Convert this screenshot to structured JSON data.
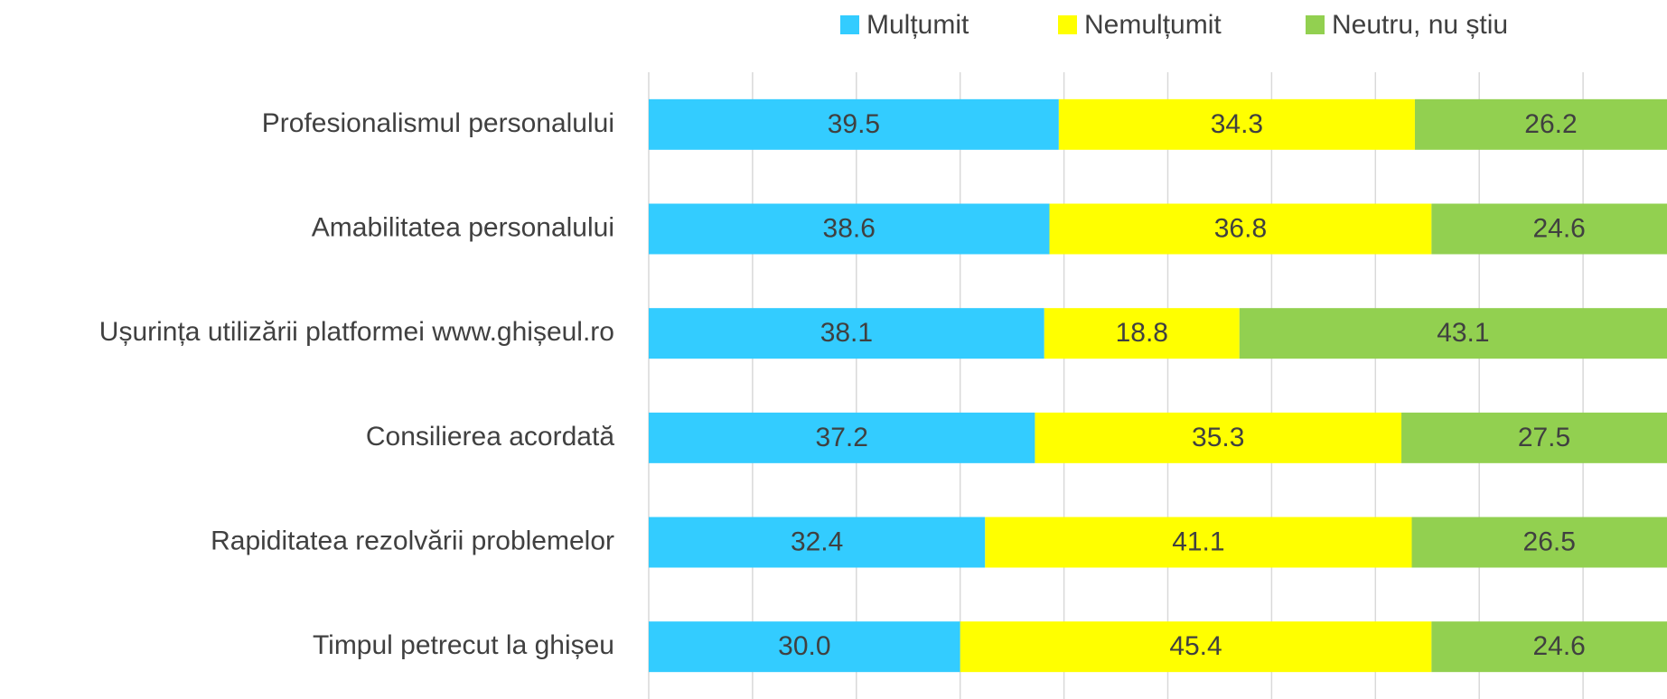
{
  "chart_data": {
    "type": "stacked-barh",
    "categories": [
      "Profesionalismul personalului",
      "Amabilitatea personalului",
      "Ușurința utilizării platformei www.ghișeul.ro",
      "Consilierea acordată",
      "Rapiditatea rezolvării problemelor",
      "Timpul petrecut la ghișeu"
    ],
    "series": [
      {
        "name": "Mulțumit",
        "color": "#33ccff",
        "values": [
          39.5,
          38.6,
          38.1,
          37.2,
          32.4,
          30.0
        ],
        "value_labels": [
          "39.5",
          "38.6",
          "38.1",
          "37.2",
          "32.4",
          "30.0"
        ]
      },
      {
        "name": "Nemulțumit",
        "color": "#ffff00",
        "values": [
          34.3,
          36.8,
          18.8,
          35.3,
          41.1,
          45.4
        ],
        "value_labels": [
          "34.3",
          "36.8",
          "18.8",
          "35.3",
          "41.1",
          "45.4"
        ]
      },
      {
        "name": "Neutru, nu știu",
        "color": "#92d050",
        "values": [
          26.2,
          24.6,
          43.1,
          27.5,
          26.5,
          24.6
        ],
        "value_labels": [
          "26.2",
          "24.6",
          "43.1",
          "27.5",
          "26.5",
          "24.6"
        ]
      }
    ],
    "xlim": [
      0,
      100
    ],
    "xticks": [
      0,
      10,
      20,
      30,
      40,
      50,
      60,
      70,
      80,
      90,
      100
    ],
    "grid": true,
    "legend": "top"
  }
}
